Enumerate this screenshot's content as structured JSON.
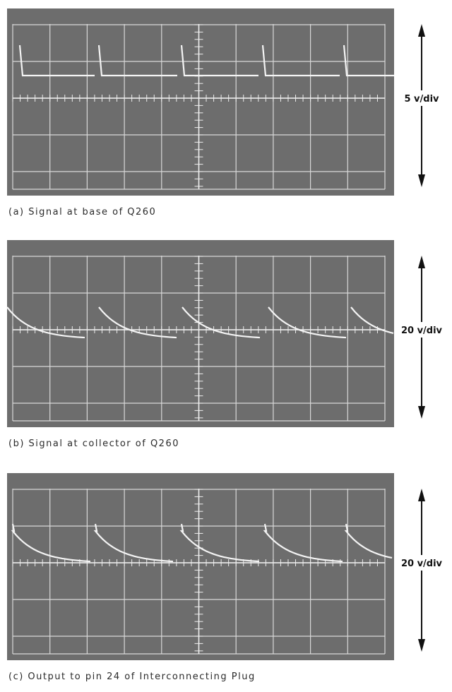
{
  "panels": [
    {
      "scale": "5 v/div",
      "caption": "(a) Signal at base of Q260"
    },
    {
      "scale": "20 v/div",
      "caption": "(b) Signal at collector of Q260"
    },
    {
      "scale": "20 v/div",
      "caption": "(c) Output to pin 24 of Interconnecting Plug"
    }
  ]
}
